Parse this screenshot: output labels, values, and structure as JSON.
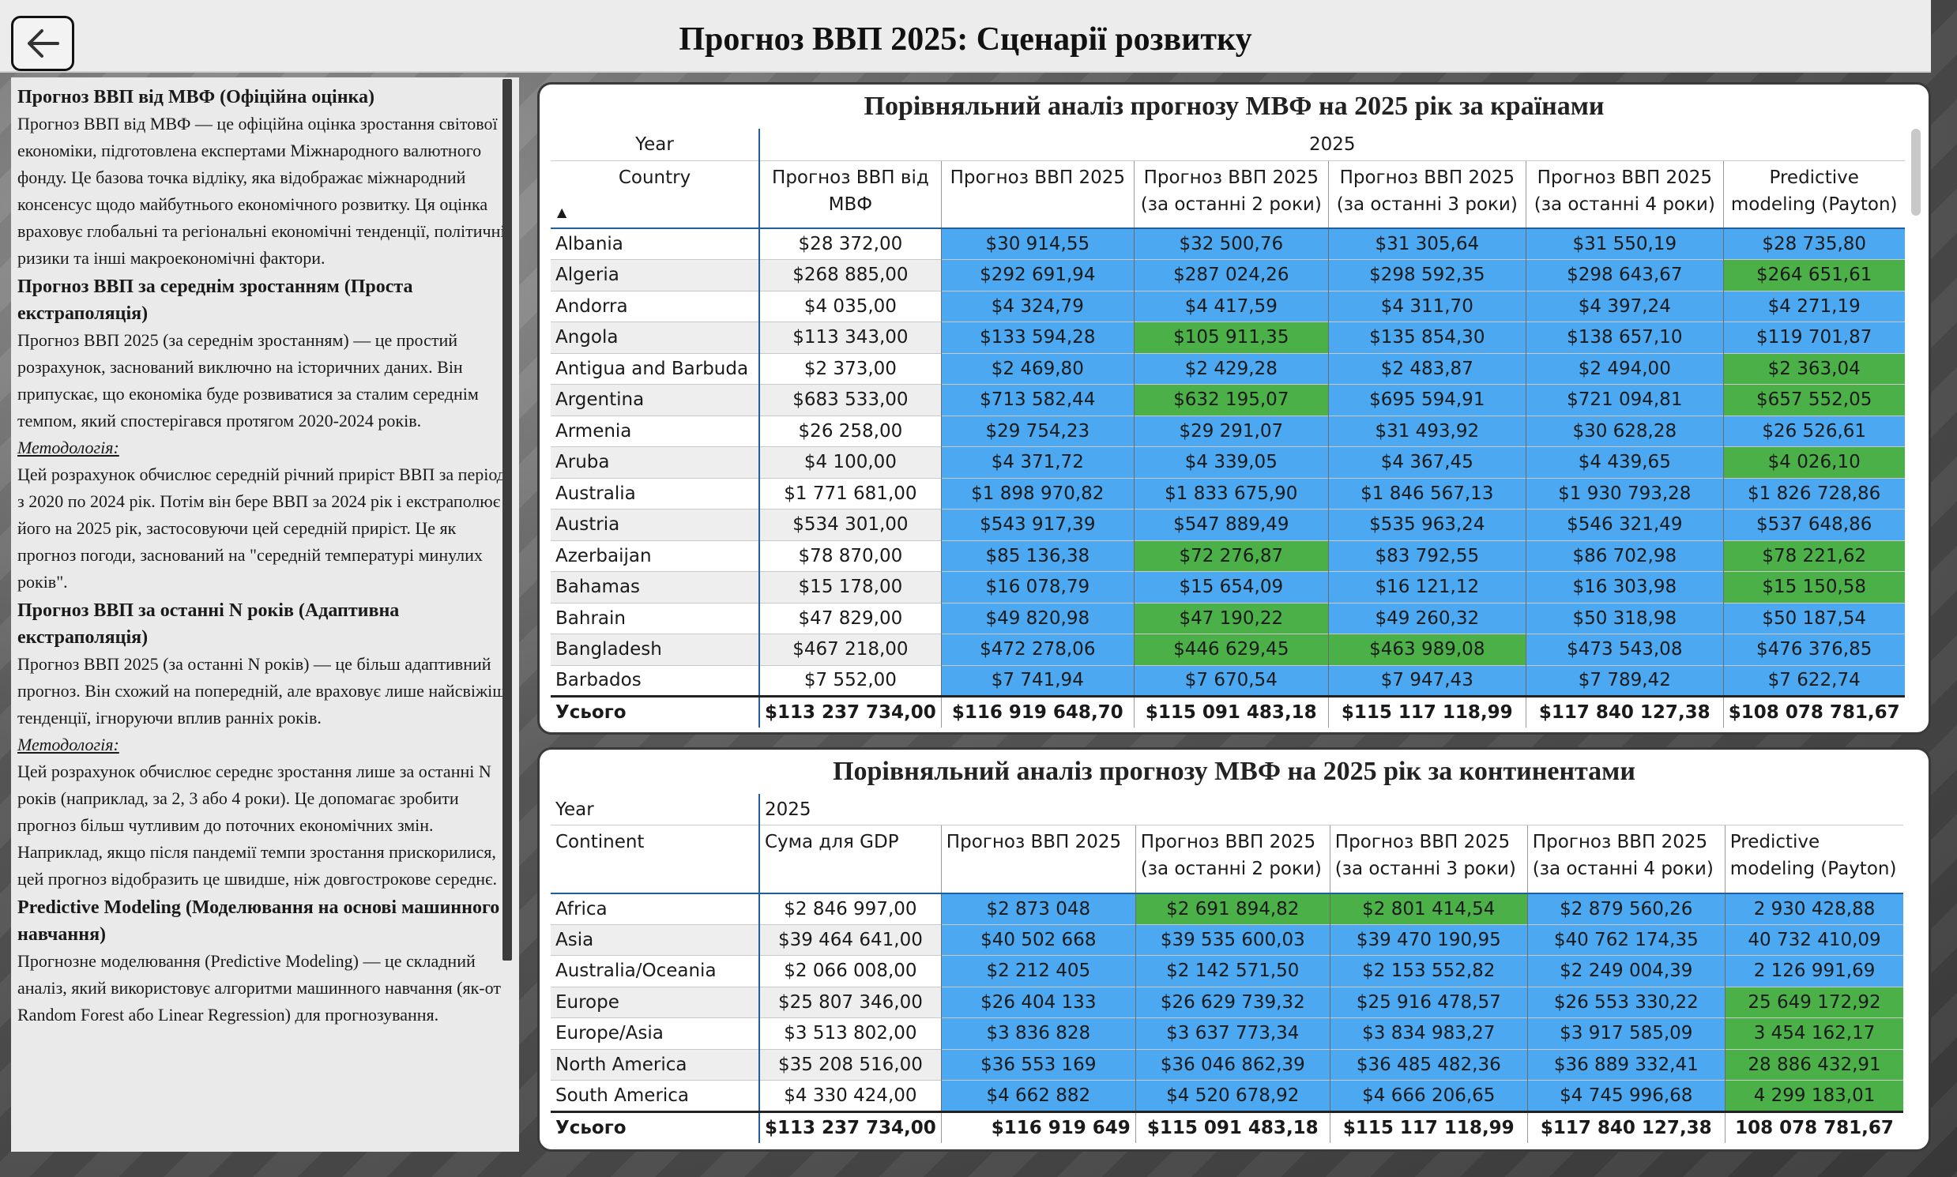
{
  "header": {
    "title": "Прогноз ВВП 2025: Сценарії розвитку"
  },
  "sidebar": {
    "s1_title": "Прогноз ВВП від МВФ (Офіційна оцінка)",
    "s1_text": "Прогноз ВВП від МВФ — це офіційна оцінка зростання світової економіки, підготовлена експертами Міжнародного валютного фонду. Це базова точка відліку, яка відображає міжнародний консенсус щодо майбутнього економічного розвитку. Ця оцінка враховує глобальні та регіональні економічні тенденції, політичні ризики та інші макроекономічні фактори.",
    "s2_title": "Прогноз ВВП за середнім зростанням (Проста екстраполяція)",
    "s2_text": "Прогноз ВВП 2025 (за середнім зростанням) — це простий розрахунок, заснований виключно на історичних даних. Він припускає, що економіка буде розвиватися за сталим середнім темпом, який спостерігався протягом 2020-2024 років.",
    "method_label": "Методологія:",
    "s2_method": "Цей розрахунок обчислює середній річний приріст ВВП за період з 2020 по 2024 рік. Потім він бере ВВП за 2024 рік і екстраполює його на 2025 рік, застосовуючи цей середній приріст. Це як прогноз погоди, заснований на \"середній температурі минулих років\".",
    "s3_title": "Прогноз ВВП за останні N років (Адаптивна екстраполяція)",
    "s3_text": "Прогноз ВВП 2025 (за останні N років) — це більш адаптивний прогноз. Він схожий на попередній, але враховує лише найсвіжіші тенденції, ігноруючи вплив ранніх років.",
    "method_label2": "Методологія:",
    "s3_method": "Цей розрахунок обчислює середнє зростання лише за останні N років (наприклад, за 2, 3 або 4 роки). Це допомагає зробити прогноз більш чутливим до поточних економічних змін. Наприклад, якщо після пандемії темпи зростання прискорилися, цей прогноз відобразить це швидше, ніж довгострокове середнє.",
    "s4_title": "Predictive Modeling (Моделювання на основі машинного навчання)",
    "s4_text": "Прогнозне моделювання (Predictive Modeling) — це складний аналіз, який використовує алгоритми машинного навчання (як-от Random Forest або Linear Regression) для прогнозування."
  },
  "t1": {
    "title": "Порівняльний аналіз прогнозу МВФ на 2025 рік за країнами",
    "year_label": "Year",
    "year": "2025",
    "row_label": "Country",
    "cols": [
      "Прогноз ВВП від МВФ",
      "Прогноз ВВП 2025",
      "Прогноз ВВП 2025 (за останні 2 роки)",
      "Прогноз ВВП 2025 (за останні 3 роки)",
      "Прогноз ВВП 2025 (за останні 4 роки)",
      "Predictive modeling (Payton)"
    ],
    "rows": [
      {
        "name": "Albania",
        "v": [
          "$28 372,00",
          "$30 914,55",
          "$32 500,76",
          "$31 305,64",
          "$31 550,19",
          "$28 735,80"
        ],
        "c": [
          "",
          "b",
          "b",
          "b",
          "b",
          "b"
        ]
      },
      {
        "name": "Algeria",
        "v": [
          "$268 885,00",
          "$292 691,94",
          "$287 024,26",
          "$298 592,35",
          "$298 643,67",
          "$264 651,61"
        ],
        "c": [
          "",
          "b",
          "b",
          "b",
          "b",
          "g"
        ]
      },
      {
        "name": "Andorra",
        "v": [
          "$4 035,00",
          "$4 324,79",
          "$4 417,59",
          "$4 311,70",
          "$4 397,24",
          "$4 271,19"
        ],
        "c": [
          "",
          "b",
          "b",
          "b",
          "b",
          "b"
        ]
      },
      {
        "name": "Angola",
        "v": [
          "$113 343,00",
          "$133 594,28",
          "$105 911,35",
          "$135 854,30",
          "$138 657,10",
          "$119 701,87"
        ],
        "c": [
          "",
          "b",
          "g",
          "b",
          "b",
          "b"
        ]
      },
      {
        "name": "Antigua and Barbuda",
        "v": [
          "$2 373,00",
          "$2 469,80",
          "$2 429,28",
          "$2 483,87",
          "$2 494,00",
          "$2 363,04"
        ],
        "c": [
          "",
          "b",
          "b",
          "b",
          "b",
          "g"
        ]
      },
      {
        "name": "Argentina",
        "v": [
          "$683 533,00",
          "$713 582,44",
          "$632 195,07",
          "$695 594,91",
          "$721 094,81",
          "$657 552,05"
        ],
        "c": [
          "",
          "b",
          "g",
          "b",
          "b",
          "g"
        ]
      },
      {
        "name": "Armenia",
        "v": [
          "$26 258,00",
          "$29 754,23",
          "$29 291,07",
          "$31 493,92",
          "$30 628,28",
          "$26 526,61"
        ],
        "c": [
          "",
          "b",
          "b",
          "b",
          "b",
          "b"
        ]
      },
      {
        "name": "Aruba",
        "v": [
          "$4 100,00",
          "$4 371,72",
          "$4 339,05",
          "$4 367,45",
          "$4 439,65",
          "$4 026,10"
        ],
        "c": [
          "",
          "b",
          "b",
          "b",
          "b",
          "g"
        ]
      },
      {
        "name": "Australia",
        "v": [
          "$1 771 681,00",
          "$1 898 970,82",
          "$1 833 675,90",
          "$1 846 567,13",
          "$1 930 793,28",
          "$1 826 728,86"
        ],
        "c": [
          "",
          "b",
          "b",
          "b",
          "b",
          "b"
        ]
      },
      {
        "name": "Austria",
        "v": [
          "$534 301,00",
          "$543 917,39",
          "$547 889,49",
          "$535 963,24",
          "$546 321,49",
          "$537 648,86"
        ],
        "c": [
          "",
          "b",
          "b",
          "b",
          "b",
          "b"
        ]
      },
      {
        "name": "Azerbaijan",
        "v": [
          "$78 870,00",
          "$85 136,38",
          "$72 276,87",
          "$83 792,55",
          "$86 702,98",
          "$78 221,62"
        ],
        "c": [
          "",
          "b",
          "g",
          "b",
          "b",
          "g"
        ]
      },
      {
        "name": "Bahamas",
        "v": [
          "$15 178,00",
          "$16 078,79",
          "$15 654,09",
          "$16 121,12",
          "$16 303,98",
          "$15 150,58"
        ],
        "c": [
          "",
          "b",
          "b",
          "b",
          "b",
          "g"
        ]
      },
      {
        "name": "Bahrain",
        "v": [
          "$47 829,00",
          "$49 820,98",
          "$47 190,22",
          "$49 260,32",
          "$50 318,98",
          "$50 187,54"
        ],
        "c": [
          "",
          "b",
          "g",
          "b",
          "b",
          "b"
        ]
      },
      {
        "name": "Bangladesh",
        "v": [
          "$467 218,00",
          "$472 278,06",
          "$446 629,45",
          "$463 989,08",
          "$473 543,08",
          "$476 376,85"
        ],
        "c": [
          "",
          "b",
          "g",
          "g",
          "b",
          "b"
        ]
      },
      {
        "name": "Barbados",
        "v": [
          "$7 552,00",
          "$7 741,94",
          "$7 670,54",
          "$7 947,43",
          "$7 789,42",
          "$7 622,74"
        ],
        "c": [
          "",
          "b",
          "b",
          "b",
          "b",
          "b"
        ]
      }
    ],
    "total_label": "Усього",
    "totals": [
      "$113 237 734,00",
      "$116 919 648,70",
      "$115 091 483,18",
      "$115 117 118,99",
      "$117 840 127,38",
      "$108 078 781,67"
    ]
  },
  "t2": {
    "title": "Порівняльний аналіз прогнозу МВФ на 2025 рік за континентами",
    "year_label": "Year",
    "year": "2025",
    "row_label": "Continent",
    "cols": [
      "Сума для GDP",
      "Прогноз ВВП 2025",
      "Прогноз ВВП 2025 (за останні 2 роки)",
      "Прогноз ВВП 2025 (за останні 3 роки)",
      "Прогноз ВВП 2025 (за останні 4 роки)",
      "Predictive modeling (Payton)"
    ],
    "rows": [
      {
        "name": "Africa",
        "v": [
          "$2 846 997,00",
          "$2 873 048",
          "$2 691 894,82",
          "$2 801 414,54",
          "$2 879 560,26",
          "2 930 428,88"
        ],
        "c": [
          "",
          "b",
          "g",
          "g",
          "b",
          "b"
        ]
      },
      {
        "name": "Asia",
        "v": [
          "$39 464 641,00",
          "$40 502 668",
          "$39 535 600,03",
          "$39 470 190,95",
          "$40 762 174,35",
          "40 732 410,09"
        ],
        "c": [
          "",
          "b",
          "b",
          "b",
          "b",
          "b"
        ]
      },
      {
        "name": "Australia/Oceania",
        "v": [
          "$2 066 008,00",
          "$2 212 405",
          "$2 142 571,50",
          "$2 153 552,82",
          "$2 249 004,39",
          "2 126 991,69"
        ],
        "c": [
          "",
          "b",
          "b",
          "b",
          "b",
          "b"
        ]
      },
      {
        "name": "Europe",
        "v": [
          "$25 807 346,00",
          "$26 404 133",
          "$26 629 739,32",
          "$25 916 478,57",
          "$26 553 330,22",
          "25 649 172,92"
        ],
        "c": [
          "",
          "b",
          "b",
          "b",
          "b",
          "g"
        ]
      },
      {
        "name": "Europe/Asia",
        "v": [
          "$3 513 802,00",
          "$3 836 828",
          "$3 637 773,34",
          "$3 834 983,27",
          "$3 917 585,09",
          "3 454 162,17"
        ],
        "c": [
          "",
          "b",
          "b",
          "b",
          "b",
          "g"
        ]
      },
      {
        "name": "North America",
        "v": [
          "$35 208 516,00",
          "$36 553 169",
          "$36 046 862,39",
          "$36 485 482,36",
          "$36 889 332,41",
          "28 886 432,91"
        ],
        "c": [
          "",
          "b",
          "b",
          "b",
          "b",
          "g"
        ]
      },
      {
        "name": "South America",
        "v": [
          "$4 330 424,00",
          "$4 662 882",
          "$4 520 678,92",
          "$4 666 206,65",
          "$4 745 996,68",
          "4 299 183,01"
        ],
        "c": [
          "",
          "b",
          "b",
          "b",
          "b",
          "g"
        ]
      }
    ],
    "total_label": "Усього",
    "totals": [
      "$113 237 734,00",
      "$116 919 649",
      "$115 091 483,18",
      "$115 117 118,99",
      "$117 840 127,38",
      "108 078 781,67"
    ]
  },
  "colors": {
    "blue": "#4ba8f1",
    "green": "#4cb049"
  }
}
